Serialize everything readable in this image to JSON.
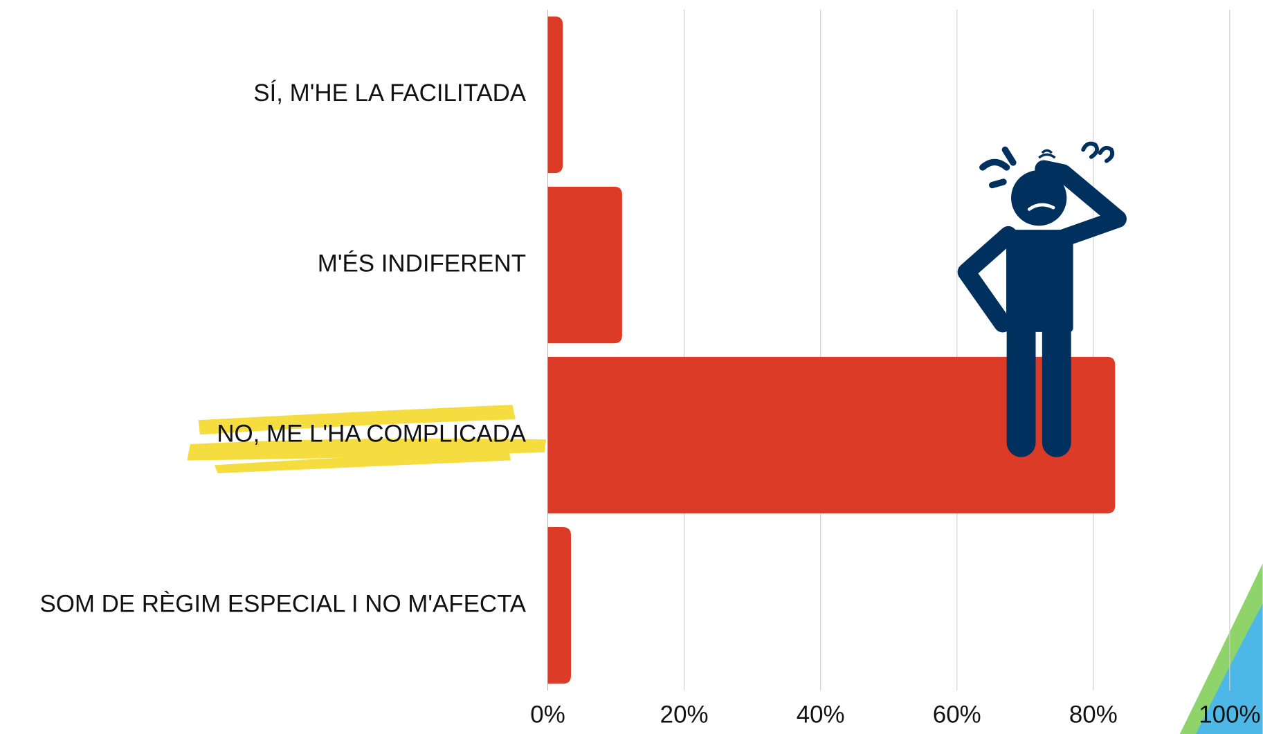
{
  "chart_data": {
    "type": "bar",
    "orientation": "horizontal",
    "categories": [
      "SÍ, M'HE LA FACILITADA",
      "M'ÉS INDIFERENT",
      "NO, ME L'HA COMPLICADA",
      "SOM DE RÈGIM ESPECIAL I NO M'AFECTA"
    ],
    "values": [
      2.2,
      10.9,
      83.2,
      3.4
    ],
    "color": "#dc3b27",
    "xlim": [
      0,
      100
    ],
    "xticks": [
      {
        "value": 0,
        "label": "0%"
      },
      {
        "value": 20,
        "label": "20%"
      },
      {
        "value": 40,
        "label": "40%"
      },
      {
        "value": 60,
        "label": "60%"
      },
      {
        "value": 80,
        "label": "80%"
      },
      {
        "value": 100,
        "label": "100%"
      }
    ],
    "grid": true
  }
}
